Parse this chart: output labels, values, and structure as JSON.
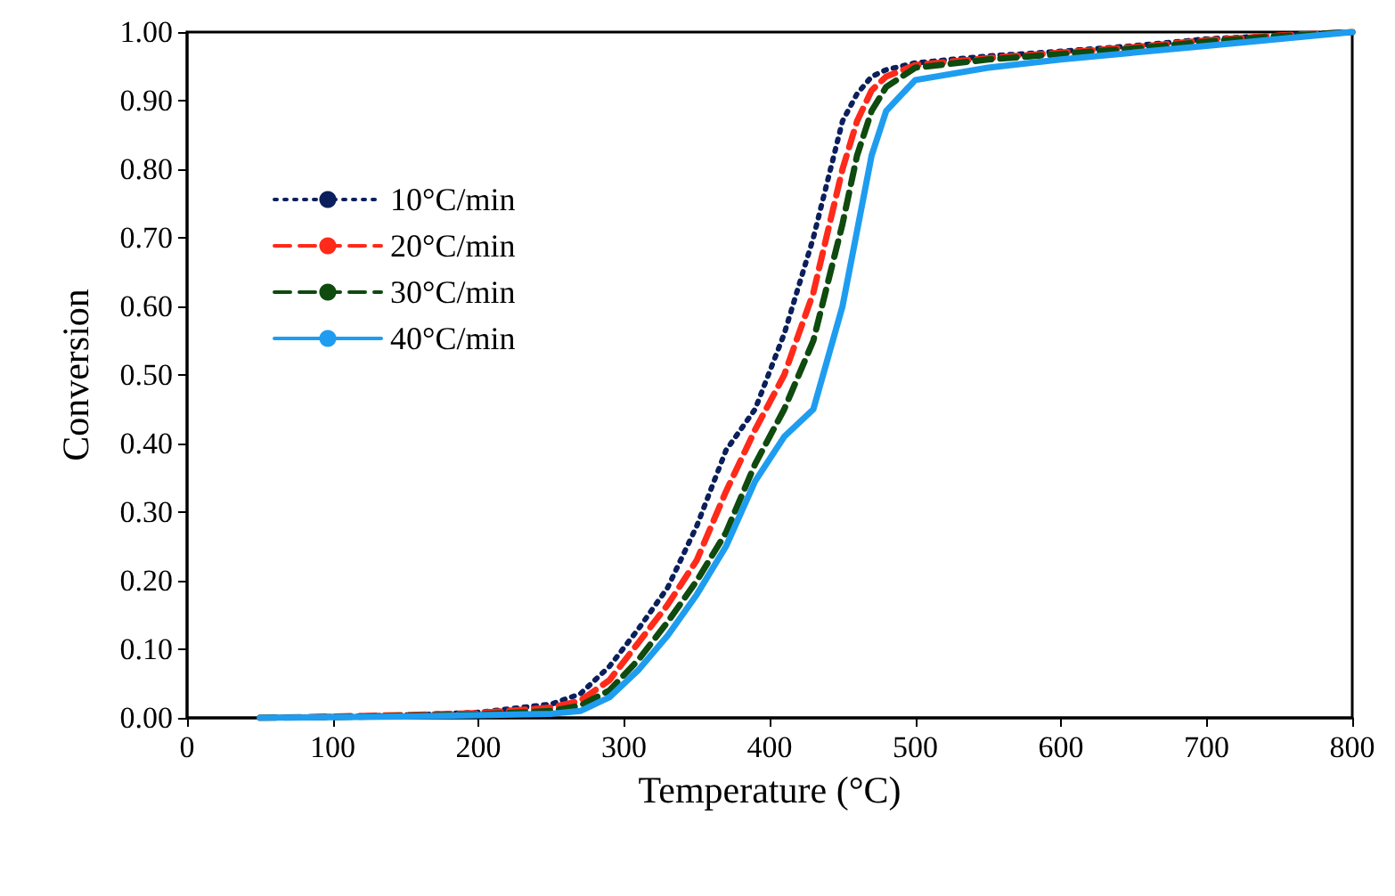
{
  "chart_data": {
    "type": "line",
    "xlabel": "Temperature (°C)",
    "ylabel": "Conversion",
    "x": [
      50,
      100,
      150,
      200,
      250,
      270,
      290,
      310,
      330,
      350,
      370,
      390,
      410,
      430,
      450,
      460,
      470,
      480,
      500,
      550,
      600,
      650,
      700,
      750,
      800
    ],
    "series": [
      {
        "name": "10°C/min",
        "color": "#0b1f5c",
        "line_style": "dotted",
        "values": [
          0,
          0.002,
          0.004,
          0.008,
          0.02,
          0.035,
          0.075,
          0.13,
          0.19,
          0.28,
          0.39,
          0.45,
          0.56,
          0.7,
          0.87,
          0.91,
          0.935,
          0.945,
          0.955,
          0.965,
          0.972,
          0.98,
          0.99,
          0.995,
          1
        ]
      },
      {
        "name": "20°C/min",
        "color": "#ff2a1a",
        "line_style": "dashed",
        "values": [
          0,
          0.002,
          0.004,
          0.007,
          0.015,
          0.025,
          0.055,
          0.11,
          0.165,
          0.23,
          0.33,
          0.42,
          0.5,
          0.62,
          0.8,
          0.87,
          0.915,
          0.935,
          0.952,
          0.962,
          0.97,
          0.978,
          0.988,
          0.995,
          1
        ]
      },
      {
        "name": "30°C/min",
        "color": "#0f4a0f",
        "line_style": "dashed",
        "values": [
          0,
          0.001,
          0.003,
          0.005,
          0.01,
          0.018,
          0.04,
          0.085,
          0.14,
          0.2,
          0.27,
          0.37,
          0.45,
          0.55,
          0.72,
          0.82,
          0.885,
          0.92,
          0.948,
          0.96,
          0.968,
          0.976,
          0.986,
          0.994,
          1
        ]
      },
      {
        "name": "40°C/min",
        "color": "#1e9df0",
        "line_style": "solid",
        "values": [
          0,
          0.001,
          0.002,
          0.004,
          0.006,
          0.01,
          0.03,
          0.07,
          0.12,
          0.18,
          0.25,
          0.345,
          0.41,
          0.45,
          0.6,
          0.71,
          0.82,
          0.885,
          0.93,
          0.948,
          0.96,
          0.97,
          0.98,
          0.99,
          1
        ]
      }
    ],
    "xlim": [
      0,
      800
    ],
    "xticks": [
      0,
      100,
      200,
      300,
      400,
      500,
      600,
      700,
      800
    ],
    "ylim": [
      0,
      1
    ],
    "yticks": [
      {
        "value": 0,
        "label": "0.00"
      },
      {
        "value": 0.1,
        "label": "0.10"
      },
      {
        "value": 0.2,
        "label": "0.20"
      },
      {
        "value": 0.3,
        "label": "0.30"
      },
      {
        "value": 0.4,
        "label": "0.40"
      },
      {
        "value": 0.5,
        "label": "0.50"
      },
      {
        "value": 0.6,
        "label": "0.60"
      },
      {
        "value": 0.7,
        "label": "0.70"
      },
      {
        "value": 0.8,
        "label": "0.80"
      },
      {
        "value": 0.9,
        "label": "0.90"
      },
      {
        "value": 1,
        "label": "1.00"
      }
    ],
    "grid": false,
    "legend": "top left",
    "marker": "none"
  }
}
